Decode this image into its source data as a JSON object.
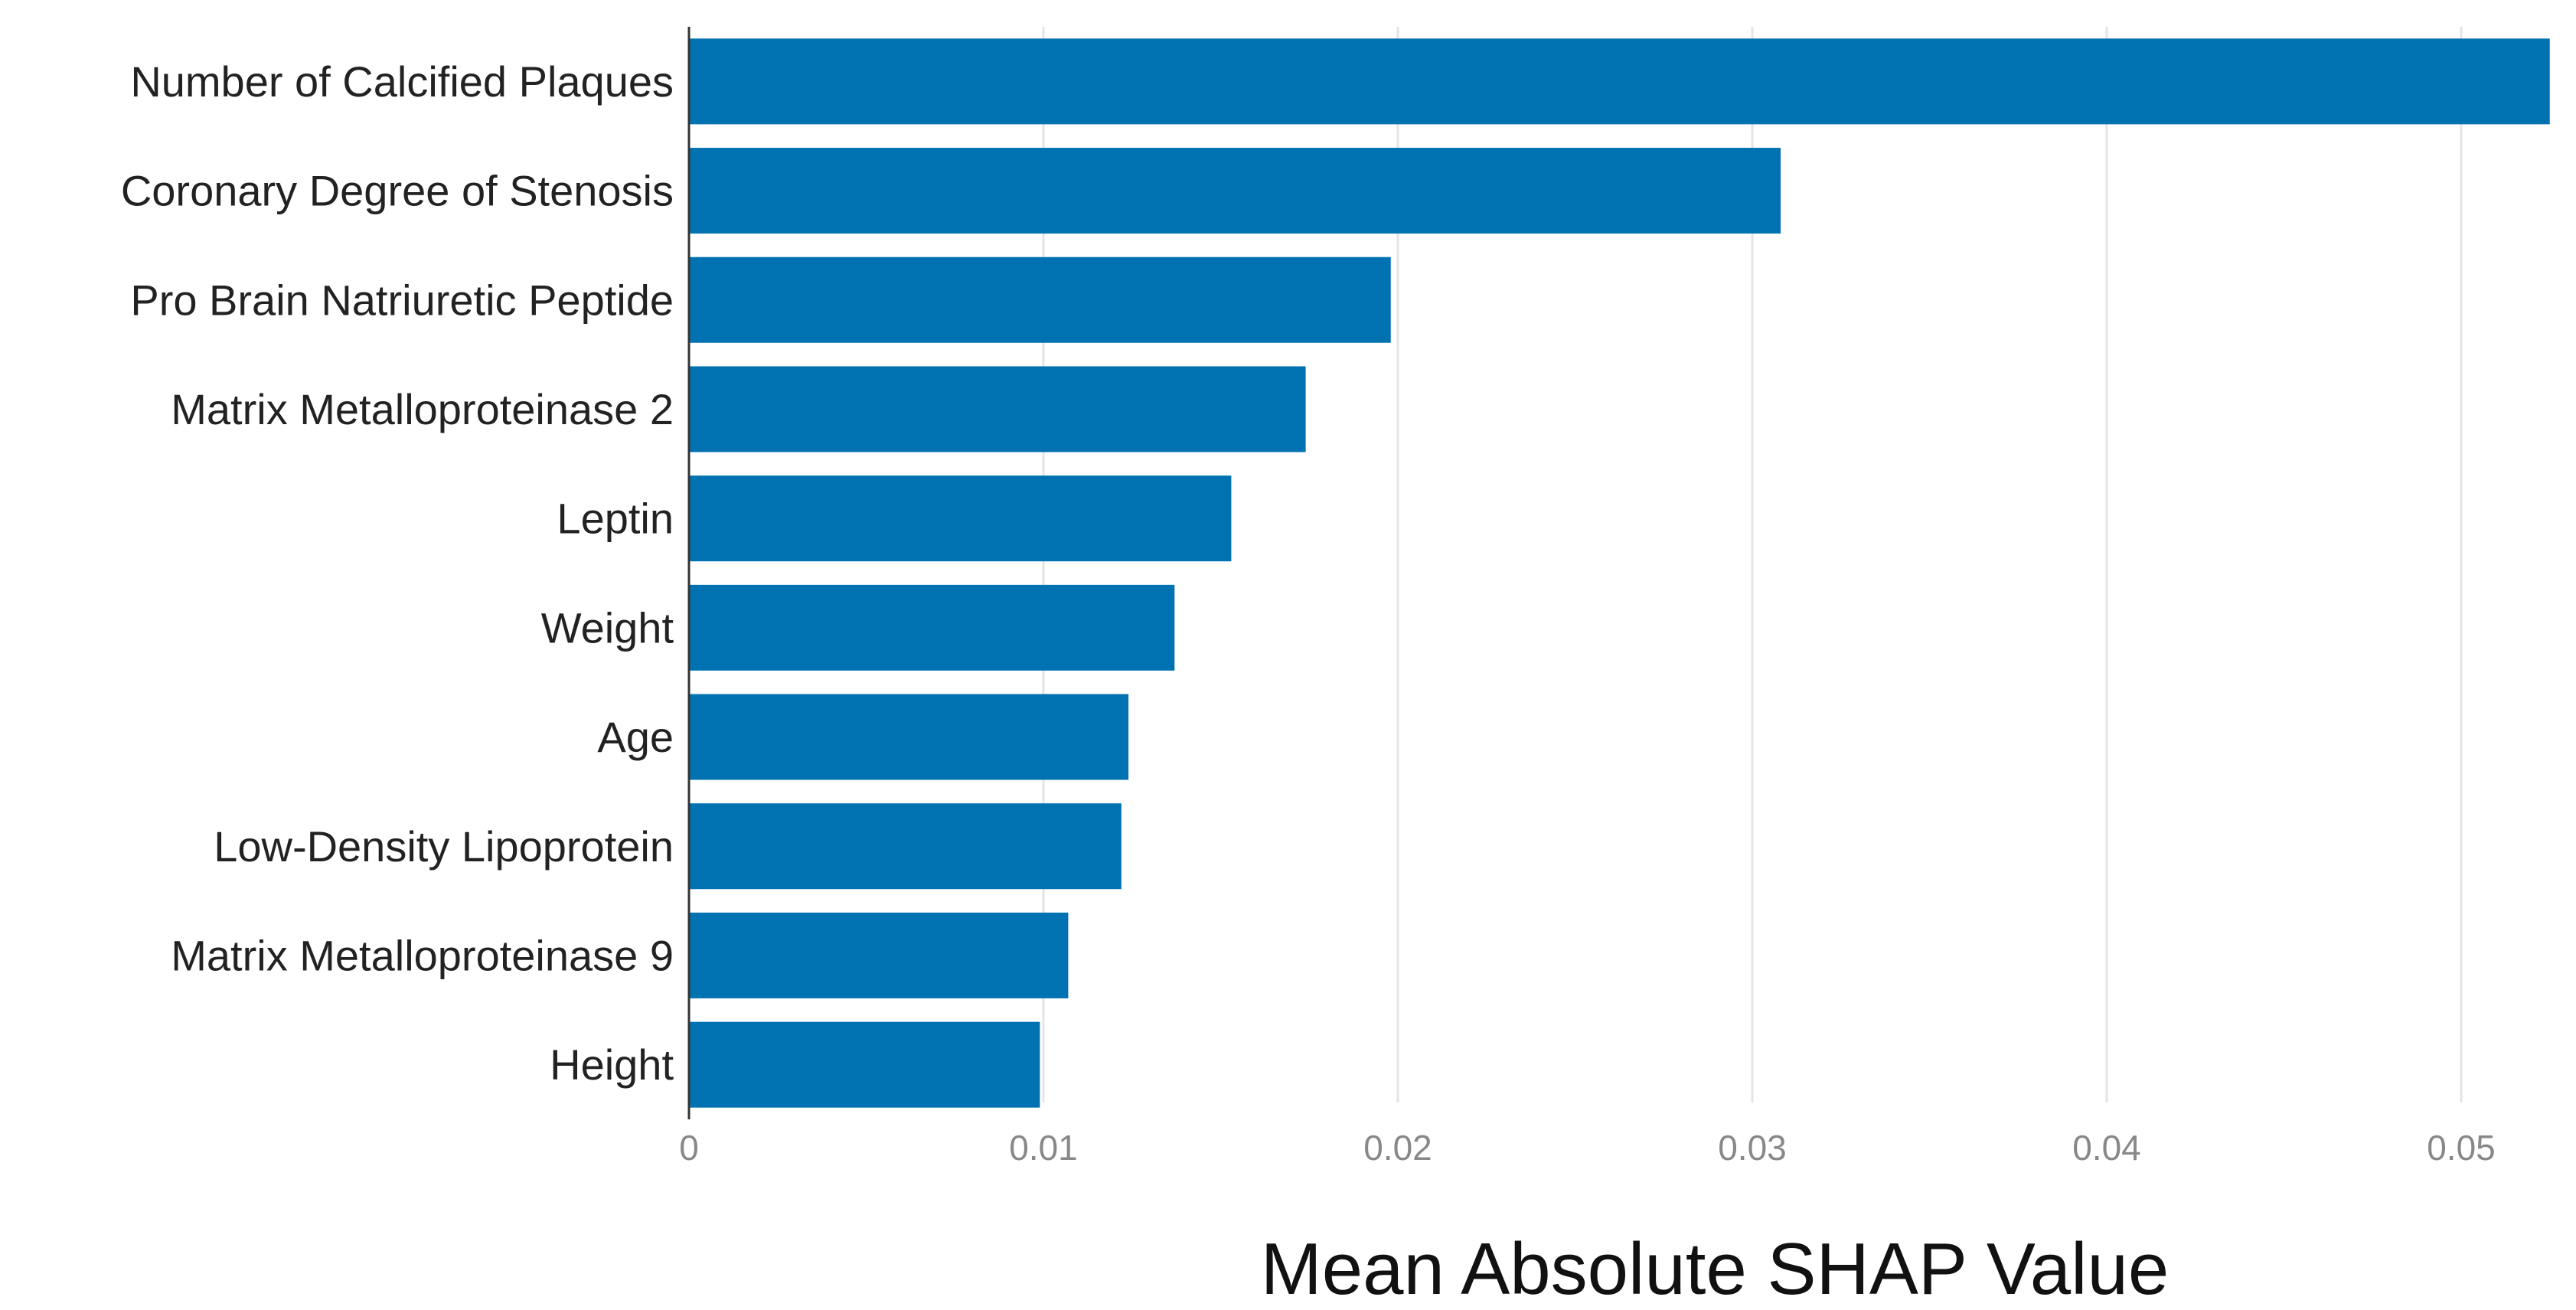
{
  "chart_data": {
    "type": "bar",
    "orientation": "horizontal",
    "categories": [
      "Number of Calcified Plaques",
      "Coronary Degree of Stenosis",
      "Pro Brain Natriuretic Peptide",
      "Matrix Metalloproteinase 2",
      "Leptin",
      "Weight",
      "Age",
      "Low-Density Lipoprotein",
      "Matrix Metalloproteinase 9",
      "Height"
    ],
    "values": [
      0.0525,
      0.0308,
      0.0198,
      0.0174,
      0.0153,
      0.0137,
      0.0124,
      0.0122,
      0.0107,
      0.0099
    ],
    "xlabel": "Mean Absolute SHAP Value",
    "ylabel": "",
    "xlim": [
      0,
      0.0527
    ],
    "xticks": [
      0,
      0.01,
      0.02,
      0.03,
      0.04,
      0.05
    ],
    "xtick_labels": [
      "0",
      "0.01",
      "0.02",
      "0.03",
      "0.04",
      "0.05"
    ],
    "grid": true,
    "legend": "none",
    "bar_color": "#0072B2"
  }
}
